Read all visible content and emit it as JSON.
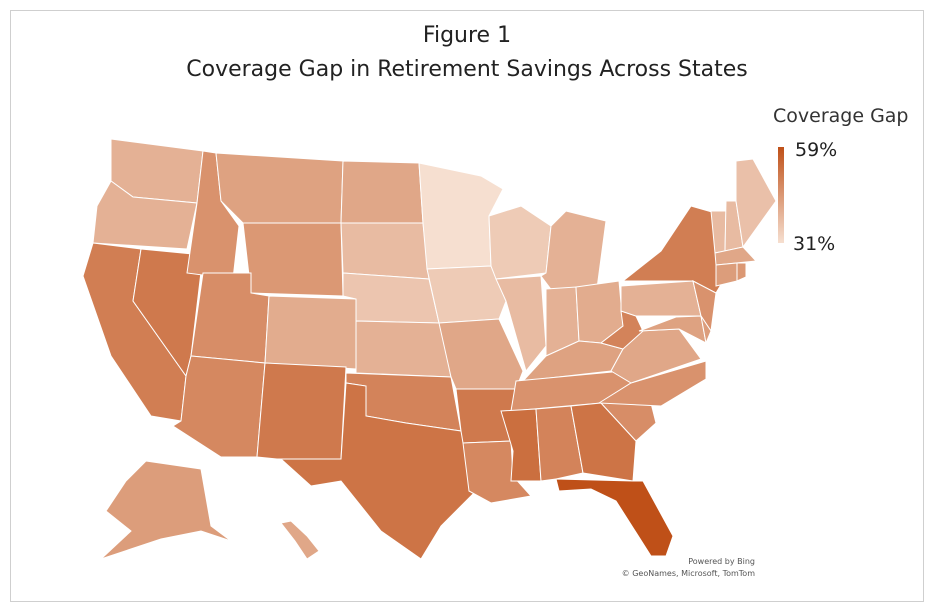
{
  "header": {
    "figure_label": "Figure 1",
    "title": "Coverage Gap in Retirement Savings Across States"
  },
  "legend": {
    "title": "Coverage Gap",
    "max_label": "59%",
    "min_label": "31%",
    "min_value": 31,
    "max_value": 59,
    "min_color": "#f6dfd0",
    "max_color": "#bf5018"
  },
  "attribution": {
    "line1": "Powered by Bing",
    "line2": "© GeoNames, Microsoft, TomTom"
  },
  "chart_data": {
    "type": "choropleth",
    "title": "Coverage Gap in Retirement Savings Across States",
    "value_unit": "%",
    "range": [
      31,
      59
    ],
    "states": {
      "WA": 40,
      "OR": 40,
      "CA": 50,
      "NV": 51,
      "ID": 46,
      "MT": 43,
      "WY": 45,
      "UT": 47,
      "CO": 41,
      "AZ": 48,
      "NM": 51,
      "ND": 42,
      "SD": 38,
      "NE": 36,
      "KS": 40,
      "OK": 49,
      "TX": 52,
      "MN": 31,
      "IA": 35,
      "MO": 42,
      "AR": 51,
      "LA": 48,
      "WI": 35,
      "IL": 38,
      "MS": 53,
      "MI": 40,
      "IN": 40,
      "KY": 43,
      "TN": 46,
      "AL": 49,
      "GA": 52,
      "FL": 59,
      "SC": 47,
      "NC": 46,
      "VA": 42,
      "WV": 49,
      "OH": 41,
      "PA": 40,
      "NY": 50,
      "VT": 38,
      "NH": 38,
      "ME": 37,
      "MA": 42,
      "CT": 44,
      "RI": 45,
      "NJ": 46,
      "DE": 44,
      "MD": 43,
      "AK": 44,
      "HI": 42
    }
  }
}
